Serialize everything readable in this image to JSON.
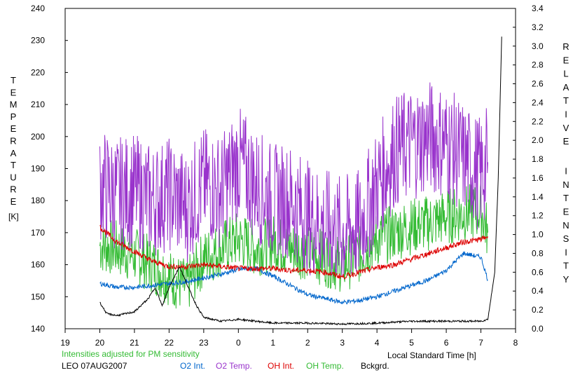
{
  "chart_data": {
    "type": "line",
    "left_axis": {
      "label": "TEMPERATURE",
      "unit": "[K]",
      "ylim": [
        140,
        240
      ],
      "ticks": [
        "240",
        "230",
        "220",
        "210",
        "200",
        "190",
        "180",
        "170",
        "160",
        "150",
        "140"
      ]
    },
    "right_axis": {
      "label": "RELATIVE INTENSITY",
      "ylim": [
        0,
        3.4
      ],
      "ticks": [
        "3.4",
        "3.2",
        "3.0",
        "2.8",
        "2.6",
        "2.4",
        "2.2",
        "2.0",
        "1.8",
        "1.6",
        "1.4",
        "1.2",
        "1.0",
        "0.8",
        "0.6",
        "0.4",
        "0.2",
        "0.0"
      ]
    },
    "x_axis": {
      "label": "Local Standard Time [h]",
      "ticks": [
        "19",
        "20",
        "21",
        "22",
        "23",
        "0",
        "1",
        "2",
        "3",
        "4",
        "5",
        "6",
        "7",
        "8"
      ]
    },
    "note": "Intensities adjusted for PM sensitivity",
    "station": "LEO 07AUG2007",
    "grid": false,
    "series": [
      {
        "name": "O2 Temp.",
        "axis": "left",
        "color": "#9933cc",
        "x": [
          20.0,
          20.5,
          21.0,
          21.5,
          22.0,
          22.5,
          23.0,
          23.5,
          24.0,
          24.5,
          25.0,
          25.5,
          26.0,
          26.5,
          27.0,
          27.5,
          28.0,
          28.5,
          29.0,
          29.5,
          30.0,
          30.5,
          31.0,
          31.2
        ],
        "y": [
          185,
          182,
          183,
          180,
          182,
          178,
          185,
          183,
          192,
          185,
          180,
          180,
          175,
          172,
          170,
          172,
          185,
          195,
          198,
          200,
          198,
          193,
          188,
          192
        ]
      },
      {
        "name": "OH Temp.",
        "axis": "left",
        "color": "#33bb33",
        "x": [
          20.0,
          20.5,
          21.0,
          21.5,
          22.0,
          22.5,
          23.0,
          23.5,
          24.0,
          24.5,
          25.0,
          25.5,
          26.0,
          26.5,
          27.0,
          27.5,
          28.0,
          28.5,
          29.0,
          29.5,
          30.0,
          30.5,
          31.0,
          31.2
        ],
        "y": [
          166,
          165,
          163,
          160,
          156,
          153,
          162,
          165,
          168,
          165,
          167,
          165,
          164,
          162,
          160,
          163,
          168,
          170,
          172,
          173,
          175,
          176,
          177,
          170
        ]
      },
      {
        "name": "OH Int.",
        "axis": "right",
        "color": "#dd0000",
        "x": [
          20.0,
          20.5,
          21.0,
          21.5,
          22.0,
          22.5,
          23.0,
          23.5,
          24.0,
          24.5,
          25.0,
          25.5,
          26.0,
          26.5,
          27.0,
          27.5,
          28.0,
          28.5,
          29.0,
          29.5,
          30.0,
          30.5,
          31.0,
          31.2
        ],
        "y": [
          1.08,
          0.92,
          0.82,
          0.72,
          0.66,
          0.66,
          0.68,
          0.66,
          0.64,
          0.64,
          0.64,
          0.62,
          0.62,
          0.6,
          0.55,
          0.6,
          0.65,
          0.68,
          0.74,
          0.8,
          0.86,
          0.92,
          0.95,
          0.98
        ]
      },
      {
        "name": "O2 Int.",
        "axis": "right",
        "color": "#0066cc",
        "x": [
          20.0,
          20.5,
          21.0,
          21.5,
          22.0,
          22.5,
          23.0,
          23.5,
          24.0,
          24.5,
          25.0,
          25.5,
          26.0,
          26.5,
          27.0,
          27.5,
          28.0,
          28.5,
          29.0,
          29.5,
          30.0,
          30.5,
          31.0,
          31.2
        ],
        "y": [
          0.48,
          0.44,
          0.44,
          0.46,
          0.48,
          0.5,
          0.54,
          0.58,
          0.63,
          0.64,
          0.56,
          0.46,
          0.36,
          0.32,
          0.28,
          0.3,
          0.34,
          0.4,
          0.46,
          0.52,
          0.62,
          0.8,
          0.76,
          0.52
        ]
      },
      {
        "name": "Bckgrd.",
        "axis": "right",
        "color": "#000000",
        "x": [
          20.0,
          20.2,
          20.5,
          21.0,
          21.4,
          21.6,
          21.8,
          22.0,
          22.3,
          22.6,
          22.8,
          23.0,
          23.5,
          24.0,
          25.0,
          26.0,
          27.0,
          28.0,
          29.0,
          30.0,
          31.0,
          31.2,
          31.4,
          31.5,
          31.6
        ],
        "y": [
          0.28,
          0.16,
          0.14,
          0.18,
          0.32,
          0.44,
          0.24,
          0.44,
          0.66,
          0.4,
          0.24,
          0.12,
          0.08,
          0.1,
          0.06,
          0.06,
          0.05,
          0.06,
          0.08,
          0.08,
          0.08,
          0.1,
          0.6,
          1.6,
          3.1
        ]
      }
    ]
  }
}
